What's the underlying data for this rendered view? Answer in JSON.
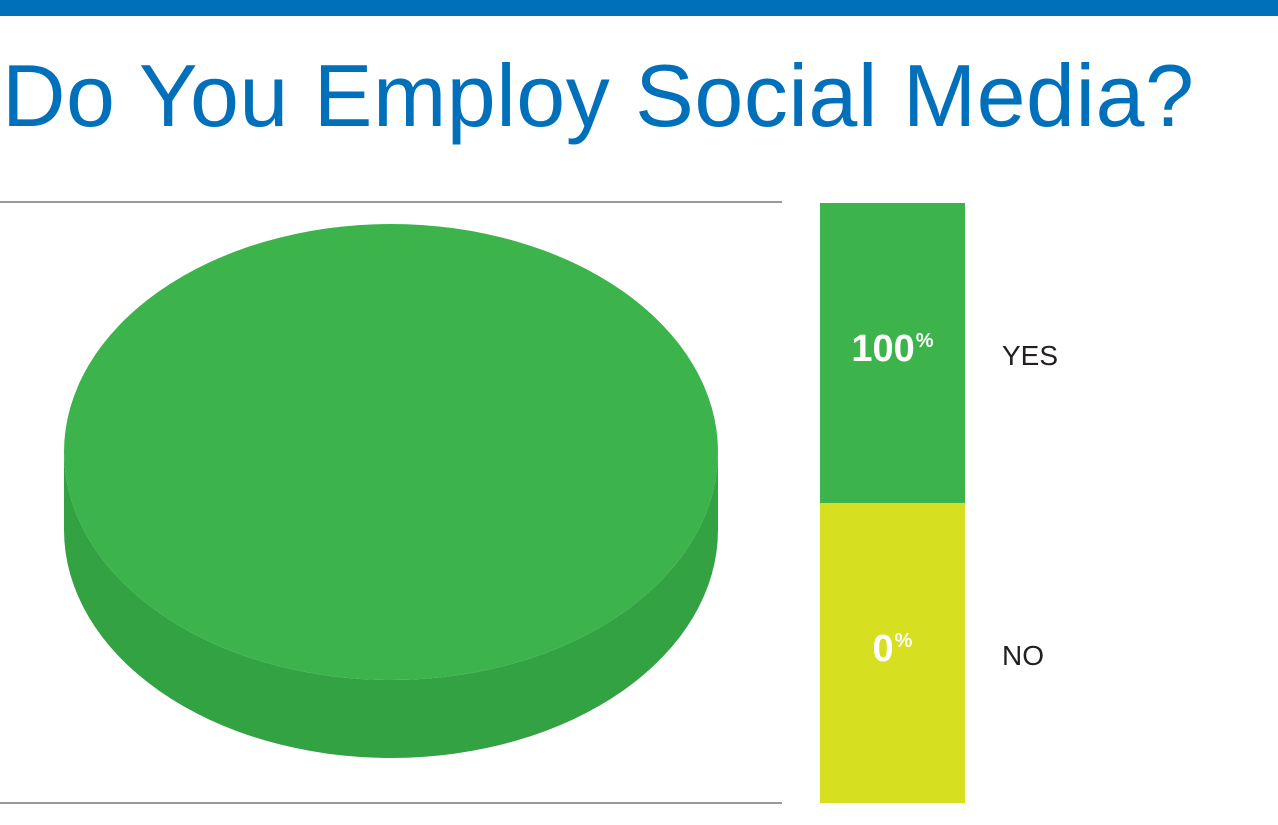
{
  "colors": {
    "brand_blue": "#0070BA",
    "rule_gray": "#9A9A9A",
    "yes_green": "#3CB44B",
    "yes_green_side": "#33A243",
    "no_yellow": "#D6E021",
    "label_text": "#231F20"
  },
  "chart_data": {
    "type": "pie",
    "title": "Do You Employ Social Media?",
    "categories": [
      "YES",
      "NO"
    ],
    "values": [
      100,
      0
    ],
    "value_labels": [
      "100",
      "0"
    ],
    "unit": "%",
    "legend_position": "right",
    "style": "3d"
  }
}
